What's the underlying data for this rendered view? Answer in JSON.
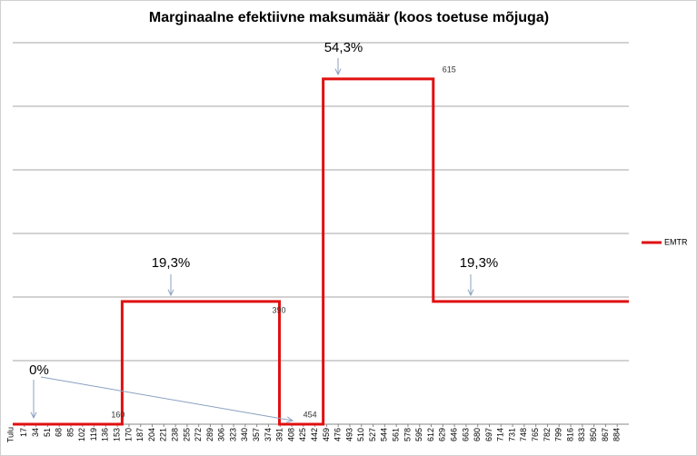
{
  "chart_data": {
    "type": "line",
    "title": "Marginaalne efektiivne maksumäär (koos toetuse mõjuga)",
    "x_label": "Tulu",
    "x": [
      0,
      160,
      160,
      390,
      390,
      454,
      454,
      615,
      615,
      901
    ],
    "series": [
      {
        "name": "EMTR",
        "color": "#e01010",
        "values": [
          0,
          0,
          19.3,
          19.3,
          0,
          0,
          54.3,
          54.3,
          19.3,
          19.3
        ]
      }
    ],
    "xlim": [
      0,
      901
    ],
    "xticks": [
      17,
      34,
      51,
      68,
      85,
      102,
      119,
      136,
      153,
      170,
      187,
      204,
      221,
      238,
      255,
      272,
      289,
      306,
      323,
      340,
      357,
      374,
      391,
      408,
      425,
      442,
      459,
      476,
      493,
      510,
      527,
      544,
      561,
      578,
      595,
      612,
      629,
      646,
      663,
      680,
      697,
      714,
      731,
      748,
      765,
      782,
      799,
      816,
      833,
      850,
      867,
      884
    ],
    "ylim": [
      0,
      60
    ],
    "yticks": [
      0,
      10,
      20,
      30,
      40,
      50,
      60
    ],
    "ytick_labels": false,
    "grid": true,
    "legend": "right",
    "annotations": [
      "0%",
      "19,3%",
      "54,3%",
      "19,3%"
    ]
  }
}
